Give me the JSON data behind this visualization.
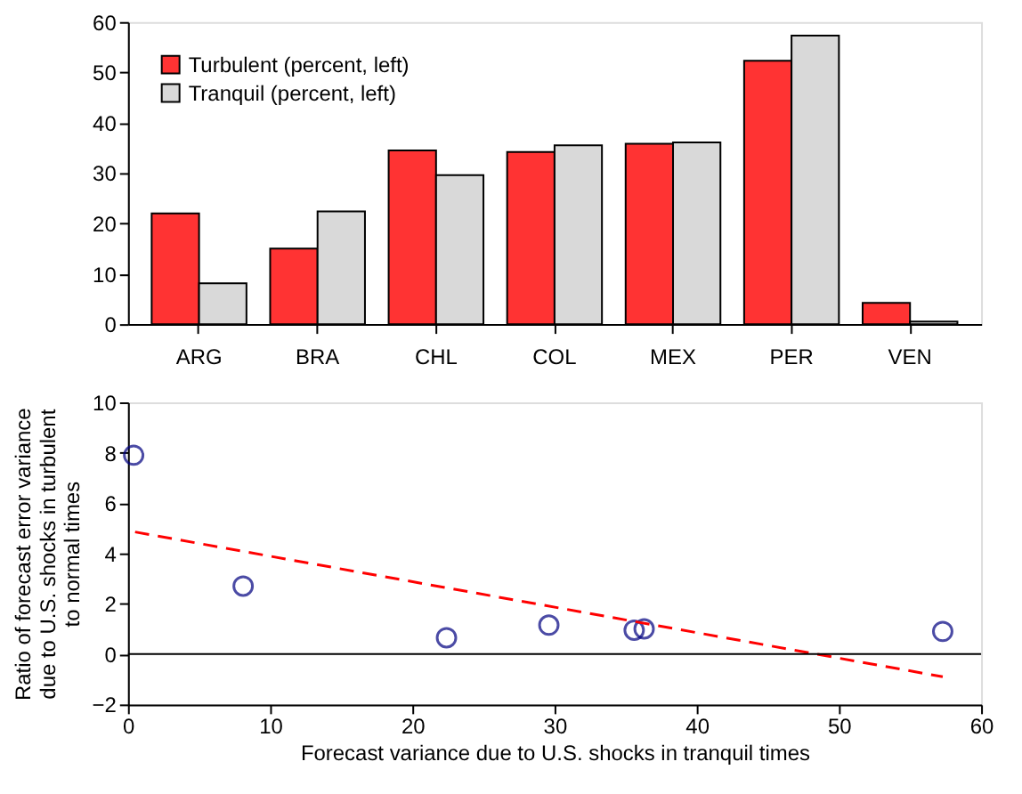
{
  "chart_data": [
    {
      "type": "bar",
      "categories": [
        "ARG",
        "BRA",
        "CHL",
        "COL",
        "MEX",
        "PER",
        "VEN"
      ],
      "series": [
        {
          "name": "Turbulent (percent, left)",
          "color": "#ff3333",
          "values": [
            22,
            15,
            34.5,
            34.2,
            35.8,
            52.3,
            4.2
          ]
        },
        {
          "name": "Tranquil (percent, left)",
          "color": "#d9d9d9",
          "values": [
            8.1,
            22.4,
            29.6,
            35.5,
            36.1,
            57.3,
            0.5
          ]
        }
      ],
      "ylim": [
        0,
        60
      ],
      "yticks": [
        0,
        10,
        20,
        30,
        40,
        50,
        60
      ],
      "grid": false,
      "legend": "top left"
    },
    {
      "type": "scatter",
      "xlabel": "Forecast variance due to U.S. shocks in tranquil times",
      "ylabel": "Ratio of forecast error variance due to U.S. shocks in turbulent to normal times",
      "x": [
        0.4,
        8.1,
        22.4,
        29.6,
        35.6,
        36.3,
        57.3
      ],
      "series": [
        {
          "type": "scatter",
          "color": "#000080",
          "marker": "circle",
          "values": [
            7.9,
            2.7,
            0.65,
            1.15,
            0.95,
            1.0,
            0.9
          ]
        },
        {
          "type": "line",
          "color": "#ff0000",
          "line_style": "dashed",
          "x": [
            0.5,
            57.3
          ],
          "values": [
            4.85,
            -0.9
          ]
        }
      ],
      "xlim": [
        0,
        60
      ],
      "xticks": [
        0,
        10,
        20,
        30,
        40,
        50,
        60
      ],
      "ylim": [
        -2,
        10
      ],
      "yticks": [
        -2,
        0,
        2,
        4,
        6,
        8,
        10
      ],
      "ref_lines": [
        {
          "axis": "y",
          "value": 0,
          "color": "#000000"
        }
      ],
      "grid": false
    }
  ]
}
